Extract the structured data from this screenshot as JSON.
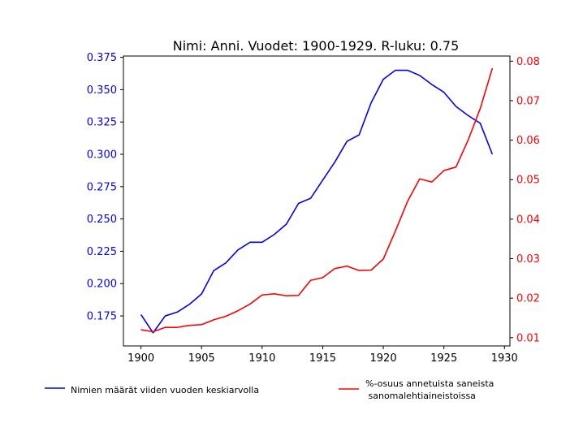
{
  "chart_data": {
    "type": "line",
    "title": "Nimi: Anni. Vuodet: 1900-1929. R-luku: 0.75",
    "xlabel": "",
    "ylabel_left": "",
    "ylabel_right": "",
    "x": [
      1900,
      1901,
      1902,
      1903,
      1904,
      1905,
      1906,
      1907,
      1908,
      1909,
      1910,
      1911,
      1912,
      1913,
      1914,
      1915,
      1916,
      1917,
      1918,
      1919,
      1920,
      1921,
      1922,
      1923,
      1924,
      1925,
      1926,
      1927,
      1928,
      1929
    ],
    "xlim": [
      1898.55,
      1930.45
    ],
    "xticks": [
      1900,
      1905,
      1910,
      1915,
      1920,
      1925,
      1930
    ],
    "xtick_labels": [
      "1900",
      "1905",
      "1910",
      "1915",
      "1920",
      "1925",
      "1930"
    ],
    "left_axis": {
      "ylim": [
        0.1518,
        0.376
      ],
      "ticks": [
        0.175,
        0.2,
        0.225,
        0.25,
        0.275,
        0.3,
        0.325,
        0.35,
        0.375
      ],
      "tick_labels": [
        "0.175",
        "0.200",
        "0.225",
        "0.250",
        "0.275",
        "0.300",
        "0.325",
        "0.350",
        "0.375"
      ],
      "color": "#0000ff"
    },
    "right_axis": {
      "ylim": [
        0.0079,
        0.0813
      ],
      "ticks": [
        0.01,
        0.02,
        0.03,
        0.04,
        0.05,
        0.06,
        0.07,
        0.08
      ],
      "tick_labels": [
        "0.01",
        "0.02",
        "0.03",
        "0.04",
        "0.05",
        "0.06",
        "0.07",
        "0.08"
      ],
      "color": "#ff0000"
    },
    "series": [
      {
        "name": "Nimien määrät viiden vuoden keskiarvolla",
        "axis": "left",
        "color": "#0000ff",
        "values": [
          0.176,
          0.162,
          0.175,
          0.178,
          0.184,
          0.192,
          0.21,
          0.216,
          0.226,
          0.232,
          0.232,
          0.238,
          0.246,
          0.262,
          0.266,
          0.28,
          0.294,
          0.31,
          0.315,
          0.34,
          0.358,
          0.365,
          0.365,
          0.361,
          0.354,
          0.348,
          0.337,
          0.33,
          0.324,
          0.3
        ]
      },
      {
        "name": "%-osuus annetuista saneista\n sanomalehtiaineistoissa",
        "axis": "right",
        "color": "#ff0000",
        "values": [
          0.012,
          0.0115,
          0.0126,
          0.0126,
          0.0131,
          0.0133,
          0.0145,
          0.0154,
          0.0168,
          0.0185,
          0.0208,
          0.0211,
          0.0206,
          0.0207,
          0.0245,
          0.0252,
          0.0275,
          0.0281,
          0.027,
          0.0271,
          0.0299,
          0.037,
          0.0445,
          0.0502,
          0.0494,
          0.0523,
          0.0532,
          0.06,
          0.068,
          0.0782
        ]
      }
    ],
    "legend": {
      "placement": "bottom",
      "labels": [
        "Nimien määrät viiden vuoden keskiarvolla",
        "%-osuus annetuista saneista",
        " sanomalehtiaineistoissa"
      ]
    },
    "grid": false
  }
}
